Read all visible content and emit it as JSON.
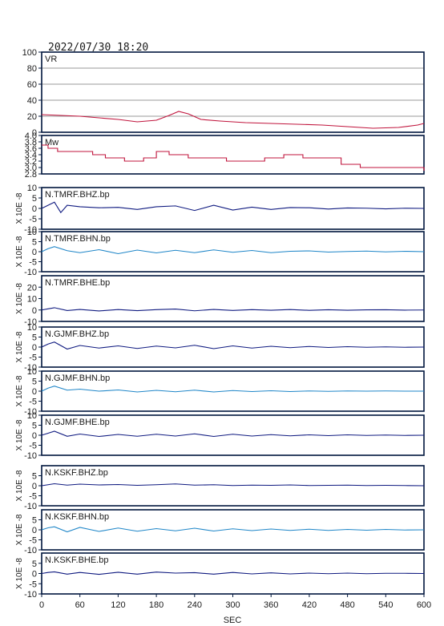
{
  "timestamp": "2022/07/30  18:20",
  "x_axis": {
    "label": "SEC",
    "ticks": [
      "0",
      "60",
      "120",
      "180",
      "240",
      "300",
      "360",
      "420",
      "480",
      "540",
      "600"
    ],
    "range": [
      0,
      600
    ]
  },
  "colors": {
    "frame": "#00163d",
    "vr_trace": "#c0143c",
    "mw_trace": "#c0143c",
    "dark_trace": "#0f1a80",
    "light_trace": "#1f86c8",
    "text": "#1a1a1a"
  },
  "unit_label": "X 10E -8",
  "chart_data": [
    {
      "type": "line",
      "panel": "vr",
      "label": "VR",
      "ylim": [
        0,
        100
      ],
      "yticks": [
        "100",
        "80",
        "60",
        "40",
        "20",
        "0"
      ],
      "grid": true,
      "color": "#c0143c",
      "x": [
        0,
        30,
        60,
        90,
        120,
        150,
        180,
        200,
        215,
        230,
        250,
        280,
        320,
        360,
        400,
        440,
        480,
        520,
        560,
        590,
        600
      ],
      "values": [
        22,
        21,
        20,
        18,
        16,
        13,
        15,
        21,
        26,
        23,
        16,
        14,
        12,
        11,
        10,
        9,
        7,
        5,
        6,
        9,
        11
      ]
    },
    {
      "type": "line",
      "panel": "mw",
      "label": "Mw",
      "ylim": [
        2.8,
        4.0
      ],
      "yticks": [
        "4.0",
        "3.8",
        "3.6",
        "3.4",
        "3.2",
        "3.0",
        "2.8"
      ],
      "grid": false,
      "color": "#c0143c",
      "x": [
        0,
        10,
        25,
        40,
        60,
        80,
        100,
        130,
        160,
        180,
        200,
        230,
        260,
        290,
        320,
        350,
        380,
        410,
        440,
        470,
        500,
        530,
        560,
        600
      ],
      "values": [
        3.7,
        3.6,
        3.5,
        3.5,
        3.5,
        3.4,
        3.3,
        3.2,
        3.3,
        3.5,
        3.4,
        3.3,
        3.3,
        3.2,
        3.2,
        3.3,
        3.4,
        3.3,
        3.3,
        3.1,
        3.0,
        3.0,
        3.0,
        2.9
      ]
    },
    {
      "type": "line",
      "panel": "wave",
      "label": "N.TMRF.BHZ.bp",
      "ylim": [
        -10,
        10
      ],
      "yticks": [
        "10",
        "5",
        "0",
        "-5",
        "-10"
      ],
      "color": "#0f1a80",
      "x": [
        0,
        10,
        20,
        30,
        40,
        60,
        90,
        120,
        150,
        180,
        210,
        240,
        270,
        300,
        330,
        360,
        390,
        420,
        450,
        480,
        510,
        540,
        570,
        600
      ],
      "values": [
        0,
        1.5,
        3,
        -2,
        1.5,
        0.8,
        0.3,
        0.5,
        -0.5,
        0.8,
        1.2,
        -1,
        1.5,
        -0.8,
        0.6,
        -0.5,
        0.4,
        0.3,
        -0.3,
        0.2,
        0.1,
        -0.2,
        0.1,
        0
      ]
    },
    {
      "type": "line",
      "panel": "wave",
      "label": "N.TMRF.BHN.bp",
      "ylim": [
        -10,
        10
      ],
      "yticks": [
        "10",
        "5",
        "0",
        "-5",
        "-10"
      ],
      "color": "#1f86c8",
      "x": [
        0,
        10,
        20,
        40,
        60,
        90,
        120,
        150,
        180,
        210,
        240,
        270,
        300,
        330,
        360,
        390,
        420,
        450,
        480,
        510,
        540,
        570,
        600
      ],
      "values": [
        0,
        1.5,
        2.5,
        0.5,
        -0.5,
        1,
        -1,
        0.8,
        -0.6,
        0.7,
        -0.5,
        0.9,
        -0.3,
        0.6,
        -0.5,
        0.2,
        0.4,
        -0.2,
        0.1,
        0.3,
        -0.1,
        0.2,
        0
      ]
    },
    {
      "type": "line",
      "panel": "wave",
      "label": "N.TMRF.BHE.bp",
      "ylim": [
        -10,
        30
      ],
      "yticks": [
        "20",
        "10",
        "0",
        "-10"
      ],
      "color": "#0f1a80",
      "x": [
        0,
        10,
        20,
        40,
        60,
        90,
        120,
        150,
        180,
        210,
        240,
        270,
        300,
        330,
        360,
        390,
        420,
        450,
        480,
        510,
        540,
        570,
        600
      ],
      "values": [
        0,
        1,
        2,
        -0.5,
        0.5,
        -0.8,
        0.4,
        -0.6,
        0.3,
        0.8,
        -0.7,
        0.5,
        -0.4,
        0.3,
        -0.2,
        0.4,
        -0.3,
        0.2,
        -0.2,
        0.1,
        0.2,
        -0.1,
        0
      ]
    },
    {
      "type": "line",
      "panel": "wave",
      "label": "N.GJMF.BHZ.bp",
      "ylim": [
        -10,
        10
      ],
      "yticks": [
        "10",
        "5",
        "0",
        "-5",
        "-10"
      ],
      "color": "#0f1a80",
      "x": [
        0,
        10,
        20,
        40,
        60,
        90,
        120,
        150,
        180,
        210,
        240,
        270,
        300,
        330,
        360,
        390,
        420,
        450,
        480,
        510,
        540,
        570,
        600
      ],
      "values": [
        0,
        1.5,
        2.5,
        -1,
        0.8,
        -0.5,
        0.6,
        -0.7,
        0.5,
        -0.4,
        0.9,
        -0.8,
        0.6,
        -0.5,
        0.4,
        -0.3,
        0.3,
        -0.2,
        0.2,
        -0.1,
        0.1,
        -0.1,
        0
      ]
    },
    {
      "type": "line",
      "panel": "wave",
      "label": "N.GJMF.BHN.bp",
      "ylim": [
        -10,
        10
      ],
      "yticks": [
        "10",
        "5",
        "0",
        "-5",
        "-10"
      ],
      "color": "#1f86c8",
      "x": [
        0,
        10,
        20,
        40,
        60,
        90,
        120,
        150,
        180,
        210,
        240,
        270,
        300,
        330,
        360,
        390,
        420,
        450,
        480,
        510,
        540,
        570,
        600
      ],
      "values": [
        0,
        1.5,
        2.5,
        0.5,
        1,
        0,
        0.6,
        -0.4,
        0.4,
        -0.3,
        0.5,
        -0.4,
        0.3,
        -0.2,
        0.2,
        -0.2,
        0.1,
        -0.1,
        0.1,
        0,
        0.1,
        0,
        0
      ]
    },
    {
      "type": "line",
      "panel": "wave",
      "label": "N.GJMF.BHE.bp",
      "ylim": [
        -10,
        10
      ],
      "yticks": [
        "10",
        "5",
        "0",
        "-5",
        "-10"
      ],
      "color": "#0f1a80",
      "x": [
        0,
        10,
        20,
        40,
        60,
        90,
        120,
        150,
        180,
        210,
        240,
        270,
        300,
        330,
        360,
        390,
        420,
        450,
        480,
        510,
        540,
        570,
        600
      ],
      "values": [
        0,
        1,
        2,
        -0.5,
        0.6,
        -0.6,
        0.4,
        -0.5,
        0.5,
        -0.4,
        0.7,
        -0.6,
        0.5,
        -0.4,
        0.3,
        -0.3,
        0.2,
        -0.2,
        0.2,
        -0.1,
        0.1,
        -0.1,
        0
      ]
    },
    {
      "type": "line",
      "panel": "wave",
      "label": "N.KSKF.BHZ.bp",
      "ylim": [
        -10,
        10
      ],
      "yticks": [
        "5",
        "0",
        "-5",
        "-10"
      ],
      "color": "#0f1a80",
      "x": [
        0,
        10,
        20,
        40,
        60,
        90,
        120,
        150,
        180,
        210,
        240,
        270,
        300,
        330,
        360,
        390,
        420,
        450,
        480,
        510,
        540,
        570,
        600
      ],
      "values": [
        0,
        0.5,
        1,
        0.3,
        0.8,
        0.4,
        0.6,
        0.2,
        0.5,
        0.9,
        0.3,
        0.5,
        0.1,
        0.3,
        0.2,
        0.4,
        0.1,
        0.2,
        0.3,
        0.1,
        0.2,
        0.1,
        0
      ]
    },
    {
      "type": "line",
      "panel": "wave",
      "label": "N.KSKF.BHN.bp",
      "ylim": [
        -10,
        10
      ],
      "yticks": [
        "5",
        "0",
        "-5",
        "-10"
      ],
      "color": "#1f86c8",
      "x": [
        0,
        10,
        20,
        40,
        60,
        90,
        120,
        150,
        180,
        210,
        240,
        270,
        300,
        330,
        360,
        390,
        420,
        450,
        480,
        510,
        540,
        570,
        600
      ],
      "values": [
        0,
        1,
        1.5,
        -1,
        1.2,
        -0.8,
        0.9,
        -0.7,
        0.6,
        -0.5,
        0.8,
        -0.6,
        0.5,
        -0.4,
        0.4,
        -0.3,
        0.3,
        -0.3,
        0.2,
        -0.2,
        0.2,
        -0.1,
        0
      ]
    },
    {
      "type": "line",
      "panel": "wave",
      "label": "N.KSKF.BHE.bp",
      "ylim": [
        -10,
        10
      ],
      "yticks": [
        "5",
        "0",
        "-5",
        "-10"
      ],
      "color": "#0f1a80",
      "x": [
        0,
        10,
        20,
        40,
        60,
        90,
        120,
        150,
        180,
        210,
        240,
        270,
        300,
        330,
        360,
        390,
        420,
        450,
        480,
        510,
        540,
        570,
        600
      ],
      "values": [
        0,
        0.5,
        0.8,
        -0.3,
        0.5,
        -0.4,
        0.6,
        -0.3,
        0.7,
        0.2,
        0.4,
        -0.3,
        0.5,
        -0.2,
        0.3,
        -0.2,
        0.2,
        -0.1,
        0.2,
        -0.1,
        0.1,
        0.1,
        0
      ]
    }
  ]
}
